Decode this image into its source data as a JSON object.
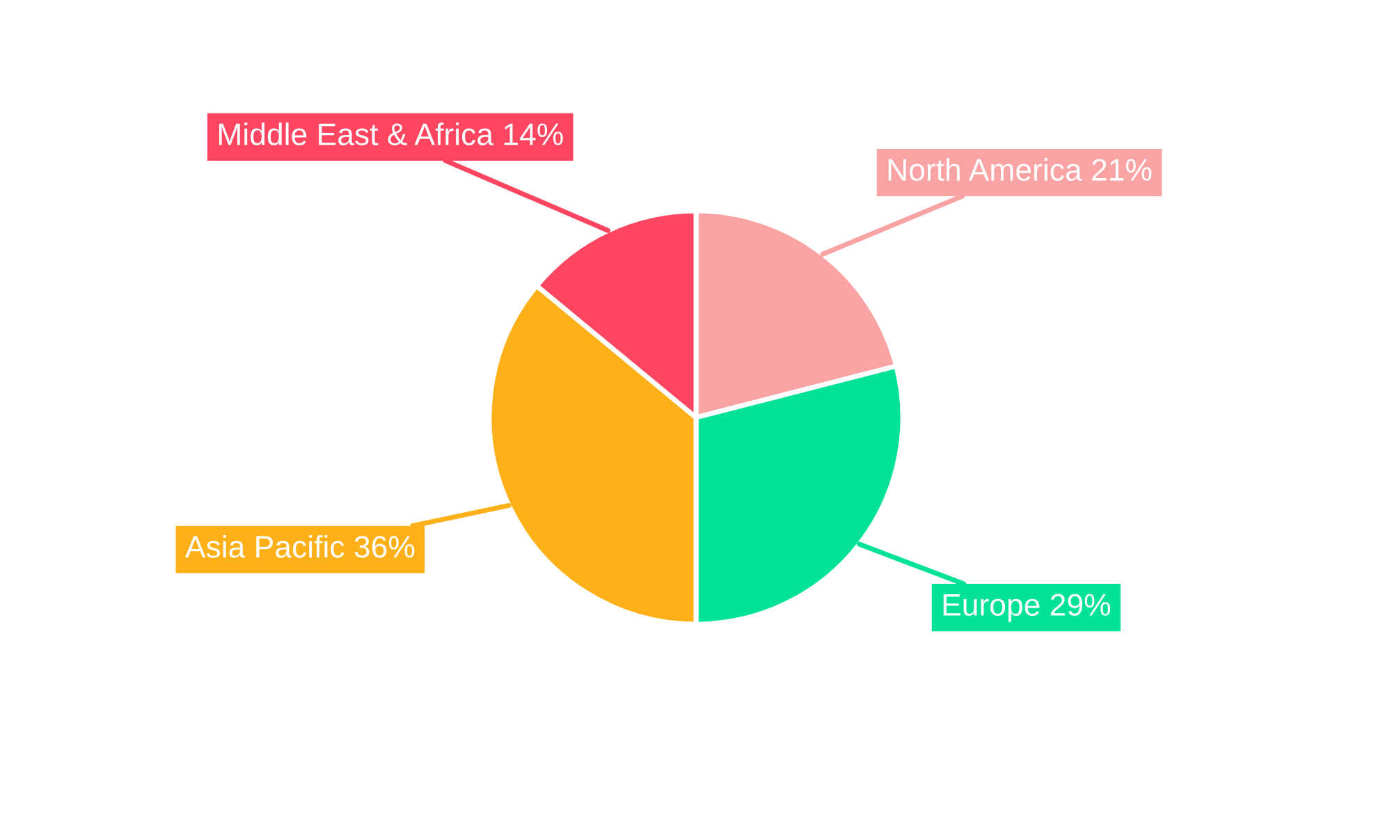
{
  "chart_data": {
    "type": "pie",
    "categories": [
      "North America",
      "Europe",
      "Asia Pacific",
      "Middle East & Africa"
    ],
    "values": [
      21,
      29,
      36,
      14
    ],
    "value_labels": [
      "21%",
      "29%",
      "36%",
      "14%"
    ],
    "colors": [
      "#f9a3a4",
      "#00e396",
      "#feb019",
      "#ff4560"
    ],
    "legend": false
  }
}
